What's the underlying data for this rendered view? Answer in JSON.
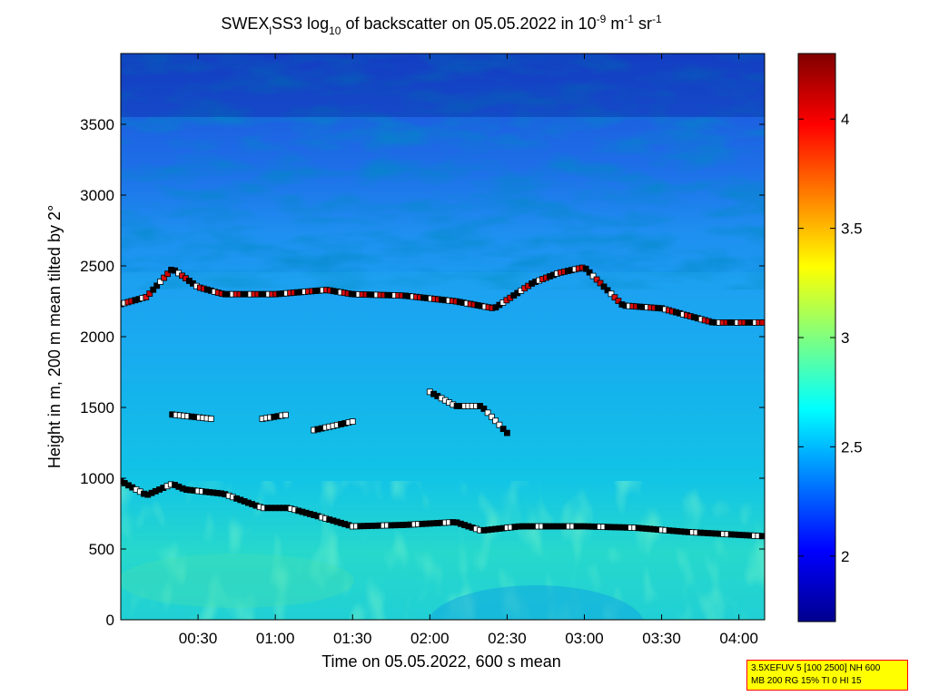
{
  "chart_data": {
    "type": "heatmap",
    "title": {
      "p1": "SWEX",
      "p1_sub": "l",
      "p2": "SS3 log",
      "p2_sub": "10",
      "p3": " of backscatter on 05.05.2022 in 10",
      "p3_sup": "-9",
      "p4": " m",
      "p4_sup": "-1",
      "p5": " sr",
      "p5_sup": "-1"
    },
    "xlabel": "Time on 05.05.2022, 600 s mean",
    "ylabel": "Height in m, 200 m mean tilted by 2°",
    "x_ticks": [
      "00:30",
      "01:00",
      "01:30",
      "02:00",
      "02:30",
      "03:00",
      "03:30",
      "04:00"
    ],
    "x_tick_minutes": [
      30,
      60,
      90,
      120,
      150,
      180,
      210,
      240
    ],
    "xlim_minutes": [
      0,
      250
    ],
    "y_ticks": [
      "0",
      "500",
      "1000",
      "1500",
      "2000",
      "2500",
      "3000",
      "3500"
    ],
    "y_tick_values": [
      0,
      500,
      1000,
      1500,
      2000,
      2500,
      3000,
      3500
    ],
    "ylim": [
      0,
      4000
    ],
    "colorbar": {
      "ticks": [
        "2",
        "2.5",
        "3",
        "3.5",
        "4"
      ],
      "tick_values": [
        2,
        2.5,
        3,
        3.5,
        4
      ],
      "range": [
        1.7,
        4.3
      ],
      "colormap": "jet"
    },
    "layers": {
      "mixing_layer": [
        [
          0,
          980
        ],
        [
          10,
          880
        ],
        [
          20,
          960
        ],
        [
          25,
          920
        ],
        [
          40,
          890
        ],
        [
          55,
          790
        ],
        [
          65,
          790
        ],
        [
          75,
          740
        ],
        [
          90,
          660
        ],
        [
          110,
          670
        ],
        [
          130,
          690
        ],
        [
          140,
          630
        ],
        [
          155,
          660
        ],
        [
          180,
          660
        ],
        [
          200,
          650
        ],
        [
          220,
          620
        ],
        [
          240,
          600
        ],
        [
          250,
          590
        ]
      ],
      "upper_layer": [
        [
          0,
          2230
        ],
        [
          10,
          2280
        ],
        [
          20,
          2480
        ],
        [
          30,
          2350
        ],
        [
          40,
          2300
        ],
        [
          60,
          2300
        ],
        [
          80,
          2330
        ],
        [
          90,
          2300
        ],
        [
          110,
          2290
        ],
        [
          130,
          2250
        ],
        [
          145,
          2200
        ],
        [
          160,
          2380
        ],
        [
          170,
          2450
        ],
        [
          180,
          2490
        ],
        [
          195,
          2220
        ],
        [
          210,
          2200
        ],
        [
          230,
          2100
        ],
        [
          250,
          2100
        ]
      ],
      "middle_segments": [
        [
          [
            20,
            1450
          ],
          [
            35,
            1420
          ]
        ],
        [
          [
            55,
            1420
          ],
          [
            65,
            1450
          ]
        ],
        [
          [
            75,
            1340
          ],
          [
            90,
            1400
          ]
        ],
        [
          [
            120,
            1610
          ],
          [
            130,
            1510
          ],
          [
            140,
            1510
          ],
          [
            150,
            1320
          ]
        ]
      ]
    }
  },
  "note": {
    "line1": "3.5XEFUV 5 [100 2500] NH 600",
    "line2": "MB 200 RG 15% TI 0 HI 15"
  }
}
